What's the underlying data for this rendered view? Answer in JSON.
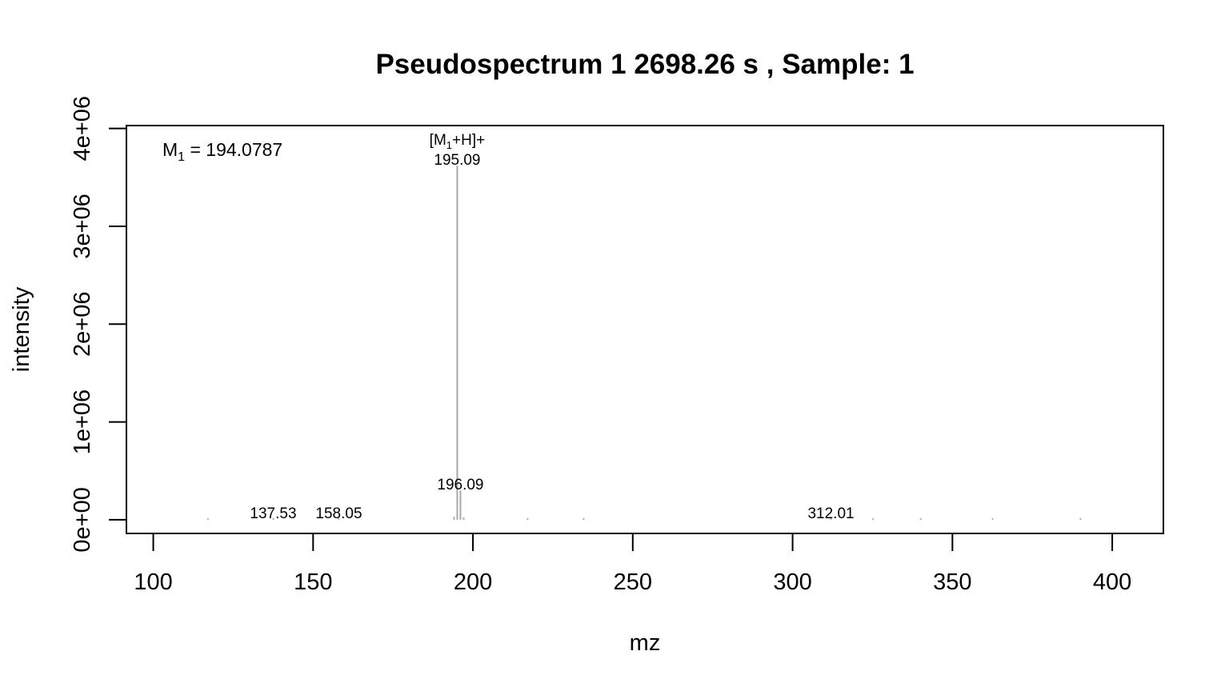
{
  "chart_data": {
    "type": "bar",
    "title": "Pseudospectrum 1 2698.26 s , Sample: 1",
    "xlabel": "mz",
    "ylabel": "intensity",
    "xlim": [
      91.6,
      416
    ],
    "ylim": [
      -140000,
      4030000
    ],
    "x_ticks": [
      100,
      150,
      200,
      250,
      300,
      350,
      400
    ],
    "x_tick_labels": [
      "100",
      "150",
      "200",
      "250",
      "300",
      "350",
      "400"
    ],
    "y_ticks": [
      0,
      1000000,
      2000000,
      3000000,
      4000000
    ],
    "y_tick_labels": [
      "0e+00",
      "1e+06",
      "2e+06",
      "3e+06",
      "4e+06"
    ],
    "bar_color": "#a9a9a9",
    "peaks": [
      {
        "mz": 117.1,
        "intensity": 5000
      },
      {
        "mz": 137.53,
        "intensity": 8000
      },
      {
        "mz": 158.05,
        "intensity": 9000
      },
      {
        "mz": 194.1,
        "intensity": 30000
      },
      {
        "mz": 195.09,
        "intensity": 3620000
      },
      {
        "mz": 196.09,
        "intensity": 300000
      },
      {
        "mz": 197.1,
        "intensity": 25000
      },
      {
        "mz": 217.1,
        "intensity": 6000
      },
      {
        "mz": 234.6,
        "intensity": 6000
      },
      {
        "mz": 312.01,
        "intensity": 7000
      },
      {
        "mz": 325.1,
        "intensity": 4000
      },
      {
        "mz": 340.1,
        "intensity": 5000
      },
      {
        "mz": 362.6,
        "intensity": 3000
      },
      {
        "mz": 390.1,
        "intensity": 6000
      }
    ],
    "peak_labels": [
      {
        "mz": 137.53,
        "intensity": 8000,
        "text": "137.53"
      },
      {
        "mz": 158.05,
        "intensity": 9000,
        "text": "158.05"
      },
      {
        "mz": 195.09,
        "intensity": 3620000,
        "text": "195.09",
        "annotation": "[M1+H]+"
      },
      {
        "mz": 196.09,
        "intensity": 300000,
        "text": "196.09"
      },
      {
        "mz": 312.01,
        "intensity": 7000,
        "text": "312.01"
      }
    ],
    "mass_annotation": {
      "symbol": "M",
      "subscript": "1",
      "text": " = 194.0787"
    },
    "adduct_annotation": {
      "prefix": "[M",
      "subscript": "1",
      "suffix": "+H]+"
    },
    "grid": false
  }
}
